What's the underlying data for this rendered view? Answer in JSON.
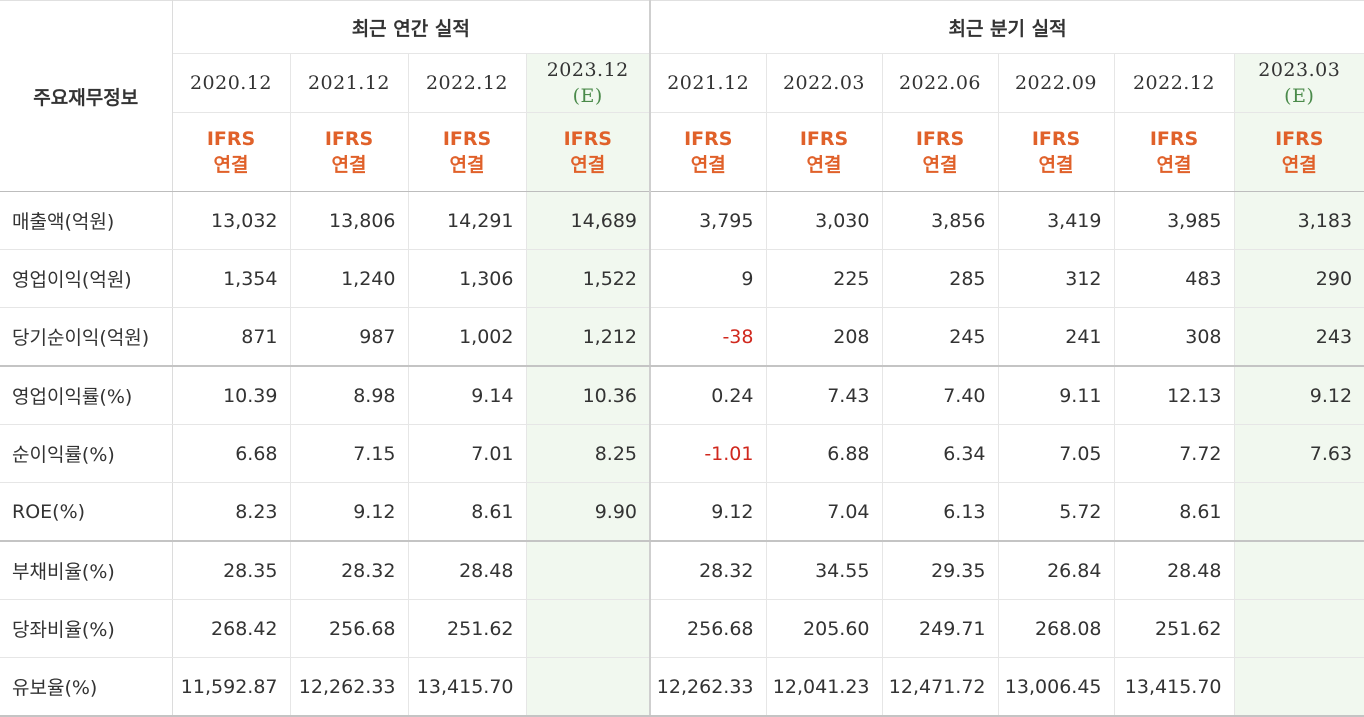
{
  "table": {
    "corner_label": "주요재무정보",
    "groups": {
      "annual": "최근 연간 실적",
      "quarterly": "최근 분기 실적"
    },
    "periods": [
      {
        "label": "2020.12"
      },
      {
        "label": "2021.12"
      },
      {
        "label": "2022.12"
      },
      {
        "label": "2023.12",
        "mark": "(E)"
      },
      {
        "label": "2021.12"
      },
      {
        "label": "2022.03"
      },
      {
        "label": "2022.06"
      },
      {
        "label": "2022.09"
      },
      {
        "label": "2022.12"
      },
      {
        "label": "2023.03",
        "mark": "(E)"
      }
    ],
    "ifrs": {
      "line1": "IFRS",
      "line2": "연결"
    },
    "rows": [
      {
        "label": "매출액(억원)",
        "values": [
          "13,032",
          "13,806",
          "14,291",
          "14,689",
          "3,795",
          "3,030",
          "3,856",
          "3,419",
          "3,985",
          "3,183"
        ]
      },
      {
        "label": "영업이익(억원)",
        "values": [
          "1,354",
          "1,240",
          "1,306",
          "1,522",
          "9",
          "225",
          "285",
          "312",
          "483",
          "290"
        ]
      },
      {
        "label": "당기순이익(억원)",
        "values": [
          "871",
          "987",
          "1,002",
          "1,212",
          "-38",
          "208",
          "245",
          "241",
          "308",
          "243"
        ]
      },
      {
        "label": "영업이익률(%)",
        "values": [
          "10.39",
          "8.98",
          "9.14",
          "10.36",
          "0.24",
          "7.43",
          "7.40",
          "9.11",
          "12.13",
          "9.12"
        ]
      },
      {
        "label": "순이익률(%)",
        "values": [
          "6.68",
          "7.15",
          "7.01",
          "8.25",
          "-1.01",
          "6.88",
          "6.34",
          "7.05",
          "7.72",
          "7.63"
        ]
      },
      {
        "label": "ROE(%)",
        "values": [
          "8.23",
          "9.12",
          "8.61",
          "9.90",
          "9.12",
          "7.04",
          "6.13",
          "5.72",
          "8.61",
          ""
        ]
      },
      {
        "label": "부채비율(%)",
        "values": [
          "28.35",
          "28.32",
          "28.48",
          "",
          "28.32",
          "34.55",
          "29.35",
          "26.84",
          "28.48",
          ""
        ]
      },
      {
        "label": "당좌비율(%)",
        "values": [
          "268.42",
          "256.68",
          "251.62",
          "",
          "256.68",
          "205.60",
          "249.71",
          "268.08",
          "251.62",
          ""
        ]
      },
      {
        "label": "유보율(%)",
        "values": [
          "11,592.87",
          "12,262.33",
          "13,415.70",
          "",
          "12,262.33",
          "12,041.23",
          "12,471.72",
          "13,006.45",
          "13,415.70",
          ""
        ]
      }
    ],
    "colors": {
      "ifrs": "#e0612a",
      "negative": "#d0281e",
      "estimate_bg": "#f1f8ef",
      "estimate_mark": "#4a8a4a"
    }
  }
}
